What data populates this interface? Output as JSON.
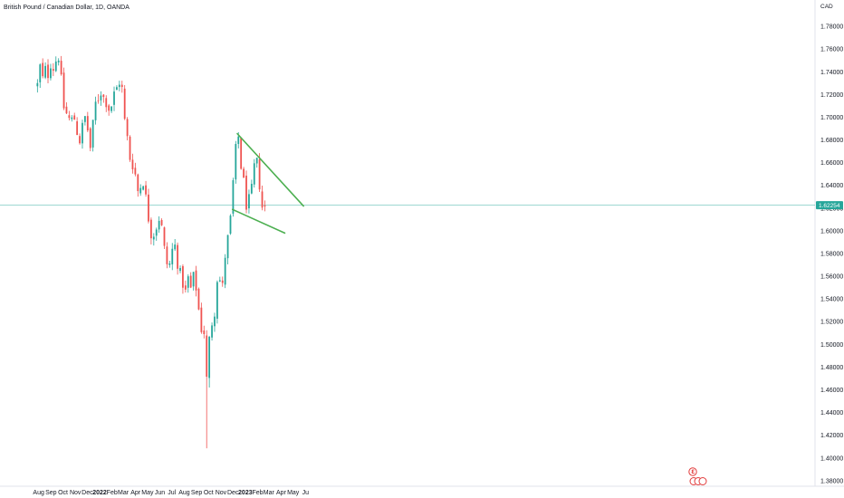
{
  "header": {
    "title": "British Pound / Canadian Dollar, 1D, OANDA",
    "currency": "CAD"
  },
  "colors": {
    "up": "#26a69a",
    "down": "#ef5350",
    "trendline": "#4caf50",
    "price_line": "#26a69a",
    "price_badge": "#26a69a",
    "event_icon": "#e23c3c"
  },
  "chart_data": {
    "type": "candlestick",
    "symbol": "British Pound / Canadian Dollar",
    "interval": "1D",
    "source": "OANDA",
    "y_axis": {
      "unit": "CAD",
      "ylim": [
        1.3751,
        1.7968
      ],
      "ticks": [
        "1.38000",
        "1.40000",
        "1.42000",
        "1.44000",
        "1.46000",
        "1.48000",
        "1.50000",
        "1.52000",
        "1.54000",
        "1.56000",
        "1.58000",
        "1.60000",
        "1.62000",
        "1.64000",
        "1.66000",
        "1.68000",
        "1.70000",
        "1.72000",
        "1.74000",
        "1.76000",
        "1.78000"
      ]
    },
    "x_axis": {
      "labels": [
        "Aug",
        "Sep",
        "Oct",
        "Nov",
        "Dec",
        "2022",
        "Feb",
        "Mar",
        "Apr",
        "May",
        "Jun",
        "Jul",
        "Aug",
        "Sep",
        "Oct",
        "Nov",
        "Dec",
        "2023",
        "Feb",
        "Mar",
        "Apr",
        "May",
        "Ju"
      ],
      "bold_labels": [
        "2022",
        "2023"
      ]
    },
    "last_price": "1.62254",
    "path": [
      [
        "2021-07-29",
        1.728
      ],
      [
        "2021-08-05",
        1.745
      ],
      [
        "2021-08-12",
        1.732
      ],
      [
        "2021-08-19",
        1.743
      ],
      [
        "2021-08-26",
        1.737
      ],
      [
        "2021-09-02",
        1.752
      ],
      [
        "2021-09-09",
        1.74
      ],
      [
        "2021-09-16",
        1.756
      ],
      [
        "2021-09-23",
        1.753
      ],
      [
        "2021-09-30",
        1.712
      ],
      [
        "2021-10-07",
        1.705
      ],
      [
        "2021-10-14",
        1.7
      ],
      [
        "2021-10-21",
        1.695
      ],
      [
        "2021-10-28",
        1.702
      ],
      [
        "2021-11-04",
        1.69
      ],
      [
        "2021-11-11",
        1.678
      ],
      [
        "2021-11-18",
        1.69
      ],
      [
        "2021-11-25",
        1.7
      ],
      [
        "2021-12-02",
        1.689
      ],
      [
        "2021-12-09",
        1.672
      ],
      [
        "2021-12-16",
        1.695
      ],
      [
        "2021-12-23",
        1.715
      ],
      [
        "2021-12-30",
        1.718
      ],
      [
        "2022-01-06",
        1.725
      ],
      [
        "2022-01-13",
        1.713
      ],
      [
        "2022-01-20",
        1.715
      ],
      [
        "2022-01-27",
        1.703
      ],
      [
        "2022-02-03",
        1.718
      ],
      [
        "2022-02-10",
        1.722
      ],
      [
        "2022-02-17",
        1.73
      ],
      [
        "2022-02-24",
        1.735
      ],
      [
        "2022-03-03",
        1.7
      ],
      [
        "2022-03-10",
        1.685
      ],
      [
        "2022-03-17",
        1.665
      ],
      [
        "2022-03-24",
        1.66
      ],
      [
        "2022-03-31",
        1.65
      ],
      [
        "2022-04-07",
        1.635
      ],
      [
        "2022-04-14",
        1.64
      ],
      [
        "2022-04-21",
        1.645
      ],
      [
        "2022-04-28",
        1.625
      ],
      [
        "2022-05-05",
        1.608
      ],
      [
        "2022-05-12",
        1.595
      ],
      [
        "2022-05-19",
        1.6
      ],
      [
        "2022-05-26",
        1.607
      ],
      [
        "2022-06-02",
        1.615
      ],
      [
        "2022-06-09",
        1.59
      ],
      [
        "2022-06-16",
        1.575
      ],
      [
        "2022-06-23",
        1.565
      ],
      [
        "2022-06-30",
        1.58
      ],
      [
        "2022-07-07",
        1.59
      ],
      [
        "2022-07-14",
        1.575
      ],
      [
        "2022-07-21",
        1.562
      ],
      [
        "2022-07-28",
        1.555
      ],
      [
        "2022-08-04",
        1.545
      ],
      [
        "2022-08-11",
        1.558
      ],
      [
        "2022-08-18",
        1.548
      ],
      [
        "2022-08-25",
        1.56
      ],
      [
        "2022-09-01",
        1.548
      ],
      [
        "2022-09-08",
        1.525
      ],
      [
        "2022-09-15",
        1.51
      ],
      [
        "2022-09-22",
        1.512
      ],
      [
        "2022-09-29",
        1.47
      ],
      [
        "2022-10-06",
        1.53
      ],
      [
        "2022-10-13",
        1.51
      ],
      [
        "2022-10-20",
        1.555
      ],
      [
        "2022-10-27",
        1.565
      ],
      [
        "2022-11-03",
        1.54
      ],
      [
        "2022-11-10",
        1.575
      ],
      [
        "2022-11-17",
        1.59
      ],
      [
        "2022-11-24",
        1.605
      ],
      [
        "2022-12-01",
        1.64
      ],
      [
        "2022-12-08",
        1.67
      ],
      [
        "2022-12-15",
        1.683
      ],
      [
        "2022-12-22",
        1.655
      ],
      [
        "2022-12-29",
        1.64
      ],
      [
        "2023-01-05",
        1.62
      ],
      [
        "2023-01-12",
        1.628
      ],
      [
        "2023-01-19",
        1.638
      ],
      [
        "2023-01-26",
        1.665
      ],
      [
        "2023-02-02",
        1.655
      ],
      [
        "2023-02-09",
        1.63
      ],
      [
        "2023-02-16",
        1.612
      ],
      [
        "2023-02-20",
        1.622
      ]
    ],
    "trendlines": [
      {
        "from": [
          "2022-12-12",
          1.6855
        ],
        "to": [
          "2023-05-27",
          1.6218
        ]
      },
      {
        "from": [
          "2022-11-30",
          1.6188
        ],
        "to": [
          "2023-04-10",
          1.598
        ]
      }
    ]
  }
}
